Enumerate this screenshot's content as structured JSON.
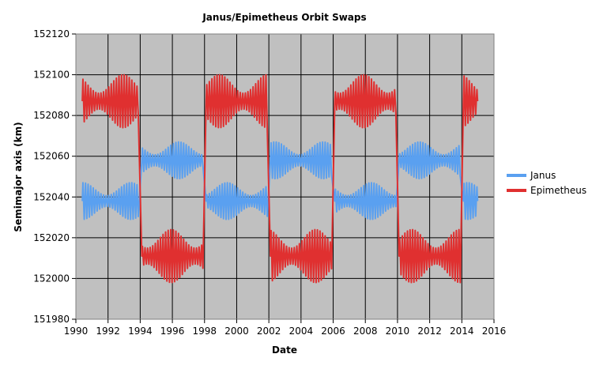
{
  "chart_data": {
    "type": "line",
    "title": "Janus/Epimetheus Orbit Swaps",
    "xlabel": "Date",
    "ylabel": "Semimajor axis (km)",
    "xlim": [
      1990,
      2016
    ],
    "ylim": [
      151980,
      152120
    ],
    "xticks": [
      1990,
      1992,
      1994,
      1996,
      1998,
      2000,
      2002,
      2004,
      2006,
      2008,
      2010,
      2012,
      2014,
      2016
    ],
    "yticks": [
      151980,
      152000,
      152020,
      152040,
      152060,
      152080,
      152100,
      152120
    ],
    "grid": true,
    "legend_position": "right",
    "plot_background": "#c0c0c0",
    "series": [
      {
        "name": "Janus",
        "color": "#5aa0f0",
        "line_width": 2,
        "x_start": 1990.4,
        "x_end": 2015.0,
        "oscillation_period_years": 0.16,
        "oscillation_amplitude_km": 9,
        "segments": [
          {
            "from": 1990.4,
            "to": 1993.9,
            "center": 152038
          },
          {
            "from": 1994.1,
            "to": 1997.9,
            "center": 152058
          },
          {
            "from": 1998.1,
            "to": 2001.9,
            "center": 152038
          },
          {
            "from": 2002.1,
            "to": 2005.9,
            "center": 152058
          },
          {
            "from": 2006.1,
            "to": 2009.9,
            "center": 152038
          },
          {
            "from": 2010.1,
            "to": 2013.9,
            "center": 152058
          },
          {
            "from": 2014.1,
            "to": 2015.0,
            "center": 152038
          }
        ]
      },
      {
        "name": "Epimetheus",
        "color": "#e03030",
        "line_width": 2,
        "x_start": 1990.4,
        "x_end": 2015.0,
        "oscillation_period_years": 0.16,
        "oscillation_amplitude_km": 13,
        "segments": [
          {
            "from": 1990.4,
            "to": 1993.9,
            "center": 152087
          },
          {
            "from": 1994.1,
            "to": 1997.9,
            "center": 152011
          },
          {
            "from": 1998.1,
            "to": 2001.9,
            "center": 152087
          },
          {
            "from": 2002.1,
            "to": 2005.9,
            "center": 152011
          },
          {
            "from": 2006.1,
            "to": 2009.9,
            "center": 152087
          },
          {
            "from": 2010.1,
            "to": 2013.9,
            "center": 152011
          },
          {
            "from": 2014.1,
            "to": 2015.0,
            "center": 152087
          }
        ]
      }
    ]
  }
}
